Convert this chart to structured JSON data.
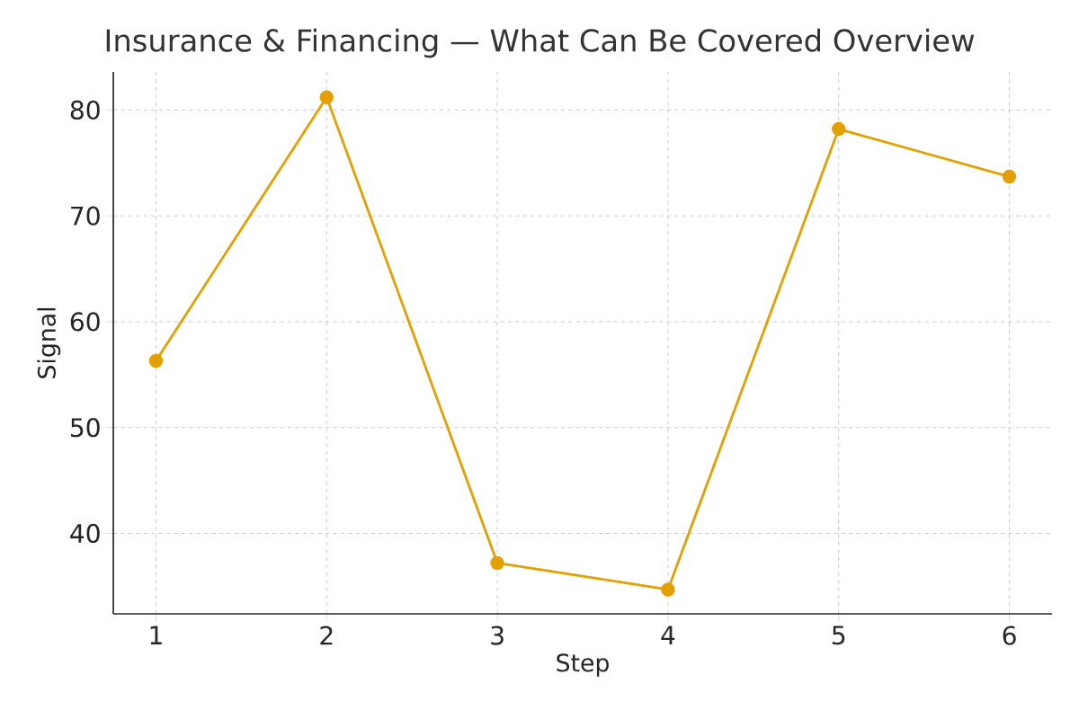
{
  "chart_data": {
    "type": "line",
    "title": "Insurance & Financing — What Can Be Covered Overview",
    "xlabel": "Step",
    "ylabel": "Signal",
    "x": [
      1,
      2,
      3,
      4,
      5,
      6
    ],
    "series": [
      {
        "color": "#e3a000",
        "values": [
          56.3,
          81.2,
          37.2,
          34.7,
          78.2,
          73.7
        ]
      }
    ],
    "xlim": [
      0.75,
      6.25
    ],
    "ylim": [
      32.4,
      83.6
    ],
    "xticks": [
      1,
      2,
      3,
      4,
      5,
      6
    ],
    "yticks": [
      40,
      50,
      60,
      70,
      80
    ],
    "grid": true,
    "marker": "circle",
    "line_style": "solid"
  }
}
